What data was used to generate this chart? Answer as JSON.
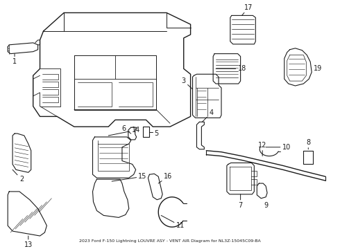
{
  "title": "2023 Ford F-150 Lightning LOUVRE ASY - VENT AIR Diagram for NL3Z-15045C09-BA",
  "background_color": "#ffffff",
  "line_color": "#1a1a1a",
  "fig_w": 4.9,
  "fig_h": 3.6,
  "dpi": 100
}
